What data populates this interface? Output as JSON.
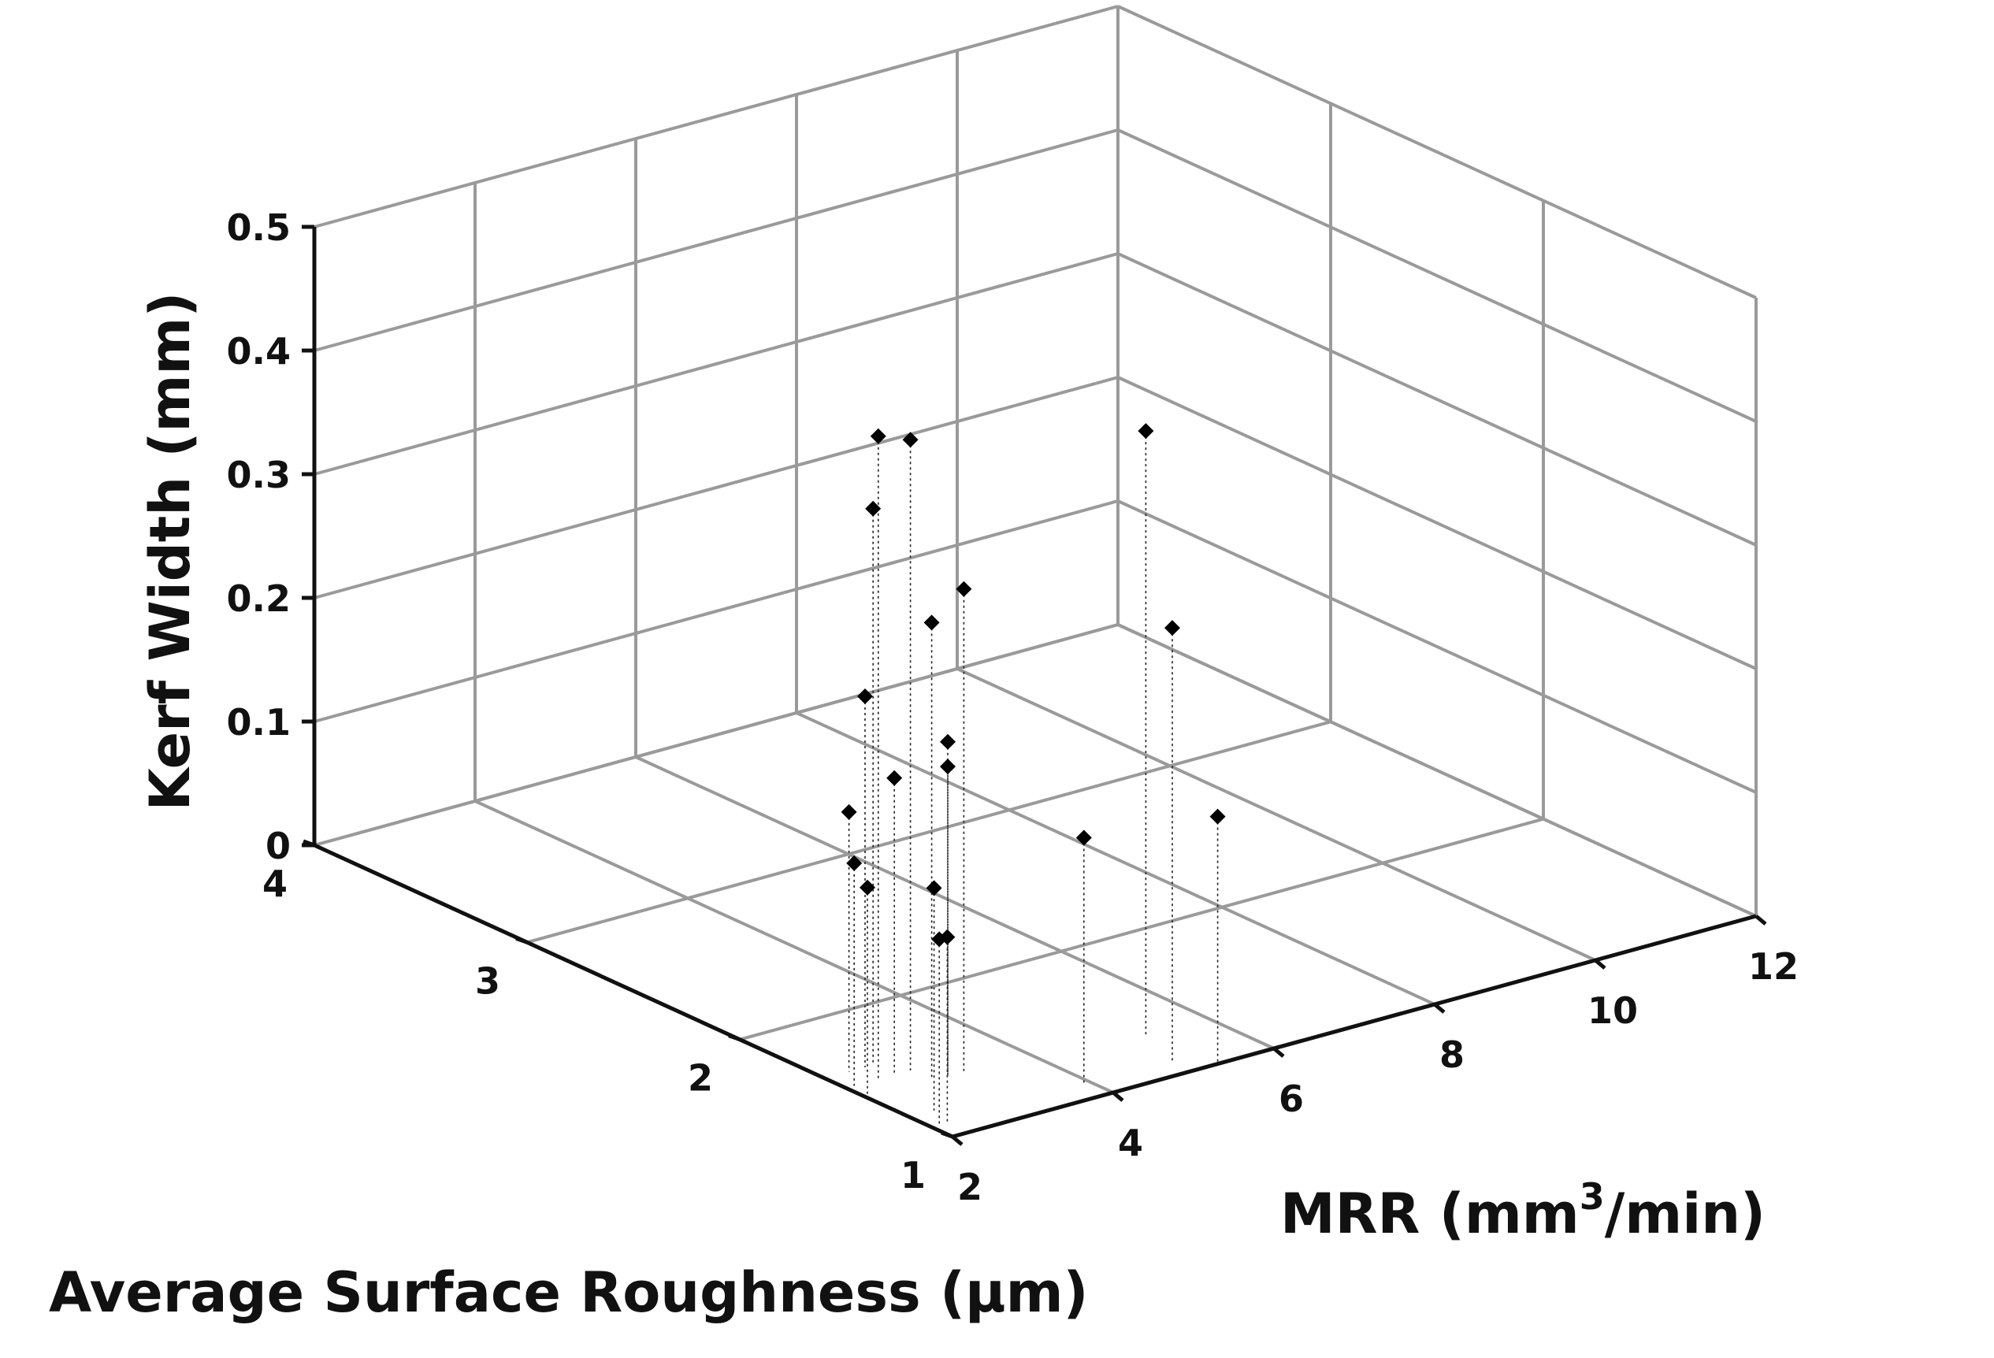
{
  "chart_data": {
    "type": "scatter",
    "projection": "3d",
    "title": "",
    "xlabel": "MRR (mm³/min)",
    "xlabel_parts": {
      "prefix": "MRR (mm",
      "sup": "3",
      "suffix": "/min)"
    },
    "ylabel": "Average Surface Roughness (μm)",
    "zlabel": "Kerf Width (mm)",
    "xlim": [
      2,
      12
    ],
    "ylim": [
      1,
      4
    ],
    "zlim": [
      0,
      0.5
    ],
    "x_ticks": [
      "2",
      "4",
      "6",
      "8",
      "10",
      "12"
    ],
    "y_ticks": [
      "1",
      "2",
      "3",
      "4"
    ],
    "z_ticks": [
      "0",
      "0.1",
      "0.2",
      "0.3",
      "0.4",
      "0.5"
    ],
    "grid": true,
    "stems": true,
    "marker": "diamond",
    "colors": {
      "marker": "#000000",
      "grid": "#9a9a9a",
      "axis": "#111111"
    },
    "points": [
      {
        "x": 2.4,
        "y": 1.5,
        "z": 0.52
      },
      {
        "x": 2.8,
        "y": 1.5,
        "z": 0.51
      },
      {
        "x": 2.6,
        "y": 1.6,
        "z": 0.45
      },
      {
        "x": 3.2,
        "y": 1.4,
        "z": 0.39
      },
      {
        "x": 2.8,
        "y": 1.4,
        "z": 0.37
      },
      {
        "x": 2.5,
        "y": 1.6,
        "z": 0.3
      },
      {
        "x": 3.0,
        "y": 1.4,
        "z": 0.27
      },
      {
        "x": 2.6,
        "y": 1.5,
        "z": 0.24
      },
      {
        "x": 3.0,
        "y": 1.4,
        "z": 0.25
      },
      {
        "x": 2.3,
        "y": 1.6,
        "z": 0.21
      },
      {
        "x": 2.1,
        "y": 1.5,
        "z": 0.18
      },
      {
        "x": 2.0,
        "y": 1.4,
        "z": 0.17
      },
      {
        "x": 2.3,
        "y": 1.2,
        "z": 0.18
      },
      {
        "x": 2.1,
        "y": 1.1,
        "z": 0.15
      },
      {
        "x": 2.2,
        "y": 1.1,
        "z": 0.15
      },
      {
        "x": 3.9,
        "y": 1.1,
        "z": 0.2
      },
      {
        "x": 5.2,
        "y": 1.3,
        "z": 0.49
      },
      {
        "x": 5.0,
        "y": 1.1,
        "z": 0.35
      },
      {
        "x": 5.3,
        "y": 1.0,
        "z": 0.2
      }
    ]
  }
}
